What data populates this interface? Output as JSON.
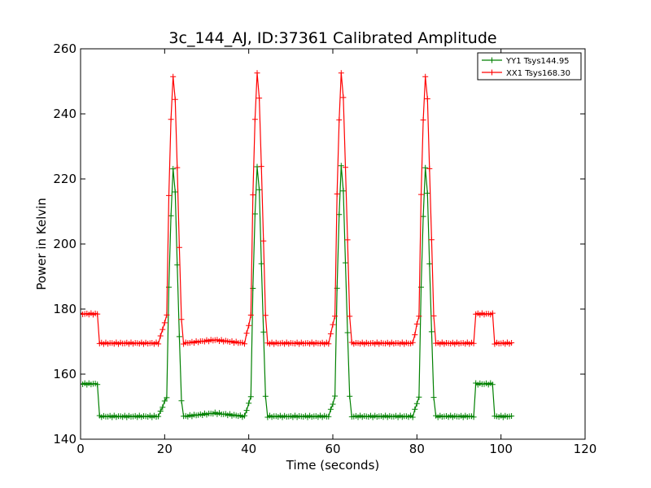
{
  "chart_data": {
    "type": "line",
    "title": "3c_144_AJ, ID:37361 Calibrated Amplitude",
    "xlabel": "Time (seconds)",
    "ylabel": "Power in Kelvin",
    "xlim": [
      0,
      120
    ],
    "ylim": [
      140,
      260
    ],
    "xticks": [
      0,
      20,
      40,
      60,
      80,
      100,
      120
    ],
    "yticks": [
      140,
      160,
      180,
      200,
      220,
      240,
      260
    ],
    "xtick_labels": [
      "0",
      "20",
      "40",
      "60",
      "80",
      "100",
      "120"
    ],
    "ytick_labels": [
      "140",
      "160",
      "180",
      "200",
      "220",
      "240",
      "260"
    ],
    "grid": false,
    "legend_position": "top-right",
    "marker": "plus",
    "series": [
      {
        "name": "YY1 Tsys144.95",
        "color": "#008000",
        "x": [
          0,
          4,
          4.2,
          18.5,
          20.5,
          21.2,
          22.2,
          23.2,
          23.9,
          24.5,
          32,
          39,
          40.5,
          41.2,
          42.2,
          43.2,
          44,
          44.5,
          52,
          59,
          60.5,
          61.2,
          62.2,
          63.2,
          64,
          64.5,
          72,
          79,
          80.5,
          81.2,
          82.2,
          83.2,
          84,
          84.5,
          93.5,
          93.8,
          98,
          98.2,
          102.5
        ],
        "y": [
          157,
          157,
          147,
          147,
          153,
          200,
          229,
          185,
          153,
          147,
          148,
          147,
          153,
          200,
          230,
          185,
          153,
          147,
          147,
          147,
          153,
          200,
          230,
          185,
          153,
          147,
          147,
          147,
          153,
          200,
          229,
          185,
          153,
          147,
          147,
          157,
          157,
          147,
          147
        ]
      },
      {
        "name": "XX1 Tsys168.30",
        "color": "#ff0000",
        "x": [
          0,
          4,
          4.2,
          18.5,
          20.5,
          21.2,
          22.2,
          23.2,
          23.9,
          24.5,
          32,
          39,
          40.5,
          41.2,
          42.2,
          43.2,
          44,
          44.5,
          52,
          59,
          60.5,
          61.2,
          62.2,
          63.2,
          64,
          64.5,
          72,
          79,
          80.5,
          81.2,
          82.2,
          83.2,
          84,
          84.5,
          93.5,
          93.8,
          98,
          98.2,
          102.5
        ],
        "y": [
          178.5,
          178.5,
          169.5,
          169.5,
          178,
          230,
          257,
          215,
          178,
          169.5,
          170.5,
          169.5,
          178,
          230,
          258,
          215,
          178,
          169.5,
          169.5,
          169.5,
          178,
          230,
          258,
          215,
          178,
          169.5,
          169.5,
          169.5,
          178,
          230,
          257,
          215,
          178,
          169.5,
          169.5,
          178.5,
          178.5,
          169.5,
          169.5
        ]
      }
    ]
  }
}
